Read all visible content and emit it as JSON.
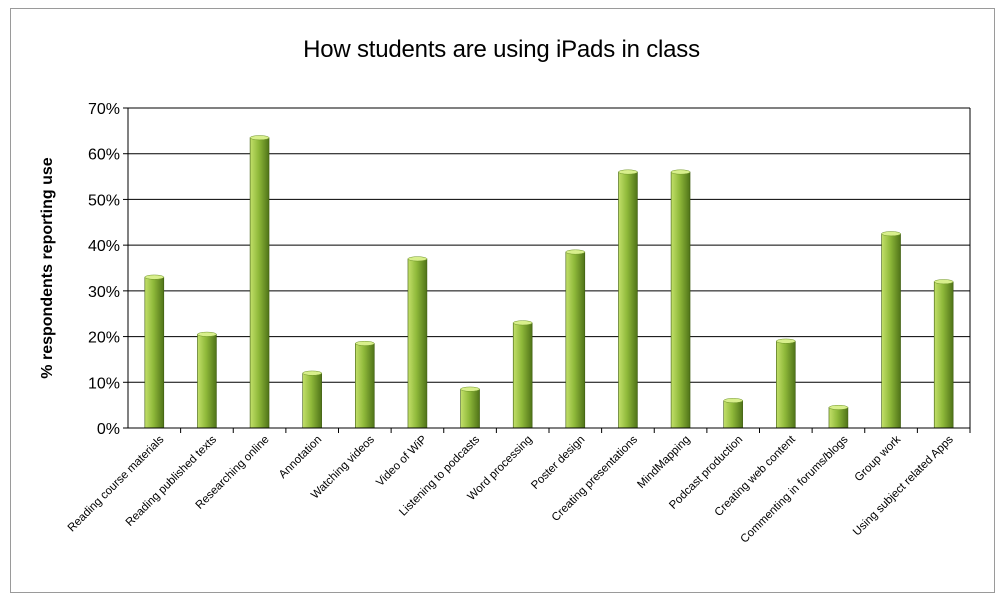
{
  "chart_data": {
    "type": "bar",
    "title": "How students are using iPads in class",
    "xlabel": "",
    "ylabel": "% respondents reporting use",
    "ylim": [
      0,
      70
    ],
    "yticks": [
      "0%",
      "10%",
      "20%",
      "30%",
      "40%",
      "50%",
      "60%",
      "70%"
    ],
    "categories": [
      "Reading course materials",
      "Reading published texts",
      "Researching online",
      "Annotation",
      "Watching videos",
      "Video of WiP",
      "Listening to podcasts",
      "Word processing",
      "Poster design",
      "Creating presentations",
      "MindMapping",
      "Podcast production",
      "Creating web content",
      "Commenting in forums/blogs",
      "Group work",
      "Using subject related Apps"
    ],
    "values": [
      33,
      20.5,
      63.5,
      12,
      18.5,
      37,
      8.5,
      23,
      38.5,
      56,
      56,
      6,
      19,
      4.5,
      42.5,
      32
    ],
    "grid": true,
    "legend": "none",
    "colors": {
      "bar_light": "#c3e06a",
      "bar_mid": "#8fb93a",
      "bar_dark": "#4f7318",
      "bar_top": "#d8ef8c",
      "gridline": "#000000",
      "plot_bg": "#ffffff"
    }
  }
}
